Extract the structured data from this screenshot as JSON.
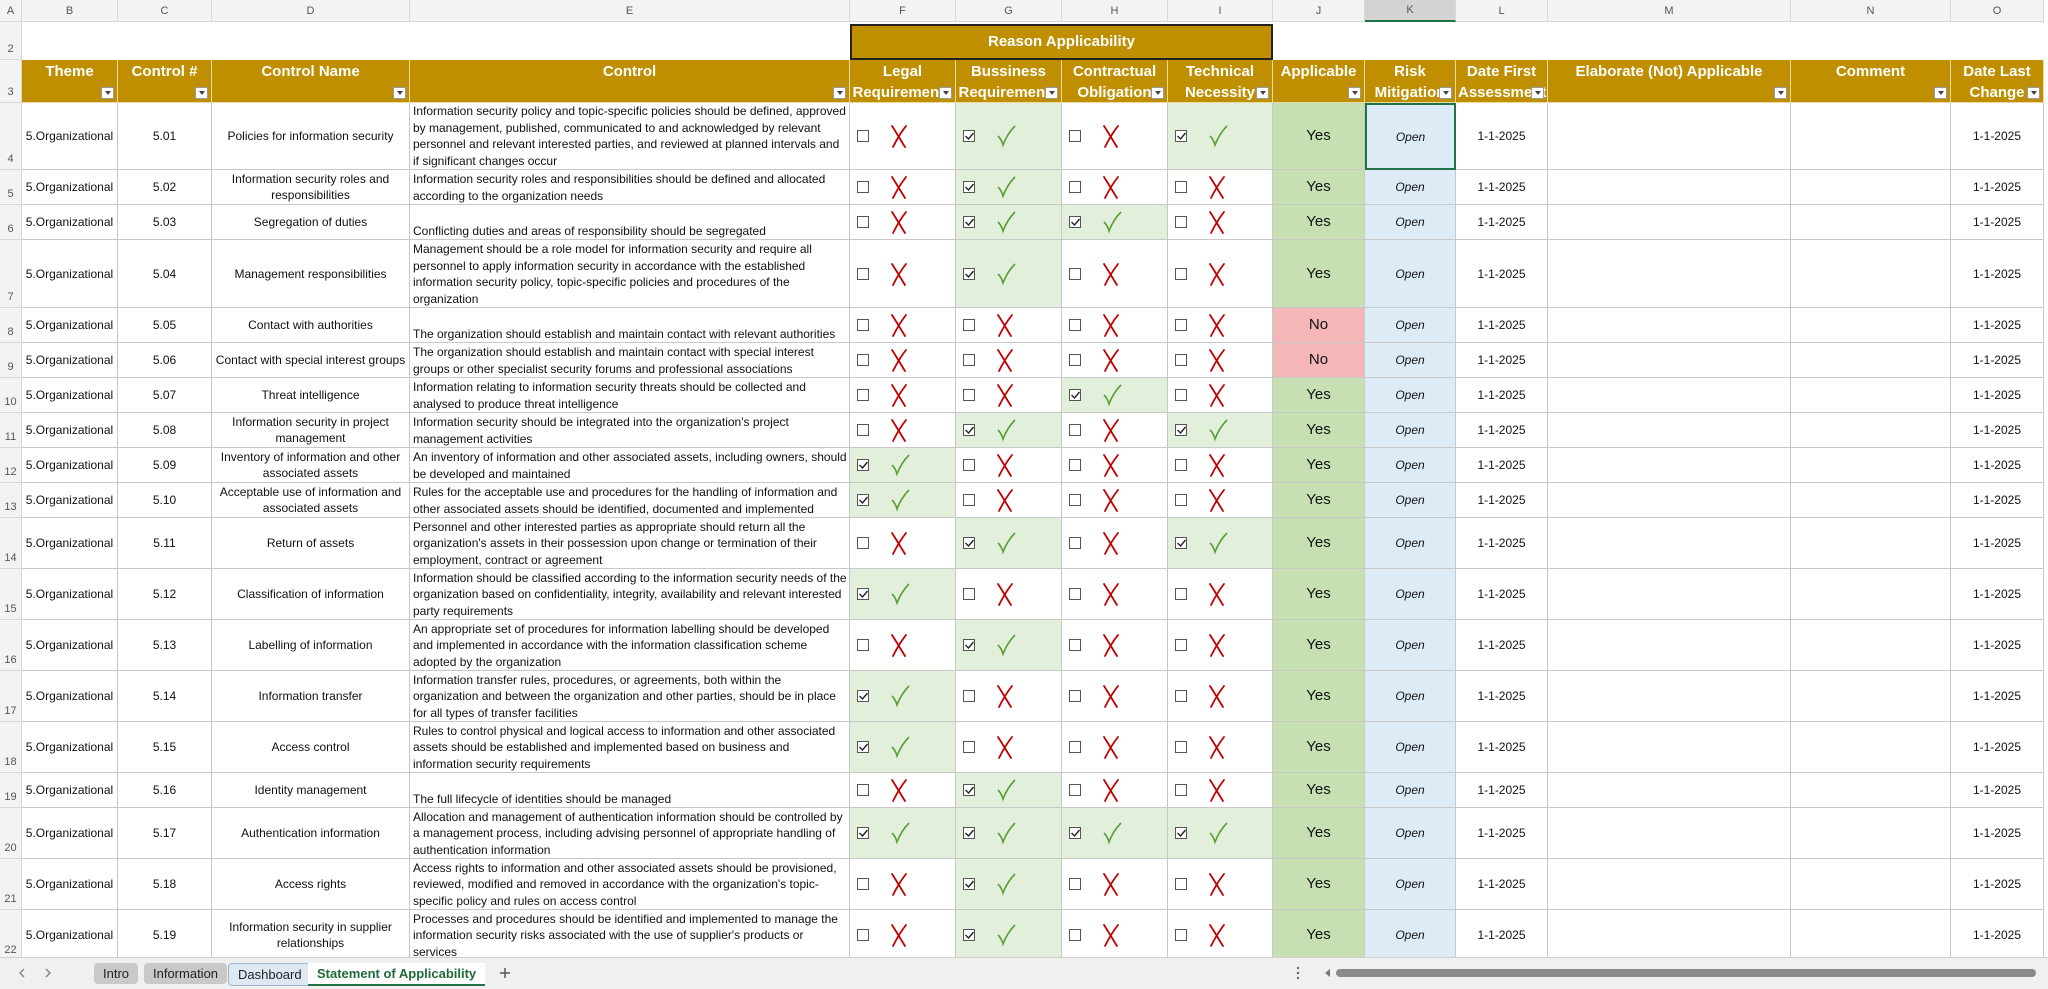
{
  "columns": [
    "A",
    "B",
    "C",
    "D",
    "E",
    "F",
    "G",
    "H",
    "I",
    "J",
    "K",
    "L",
    "M",
    "N",
    "O"
  ],
  "row_numbers": [
    2,
    3,
    4,
    5,
    6,
    7,
    8,
    9,
    10,
    11,
    12,
    13,
    14,
    15,
    16,
    17,
    18,
    19,
    20,
    21,
    22
  ],
  "group_header": "Reason Applicability",
  "headers": [
    "Theme",
    "Control #",
    "Control Name",
    "Control",
    "Legal Requirements",
    "Bussiness Requirements",
    "Contractual Obligation",
    "Technical Necessity",
    "Applicable",
    "Risk Mitigation",
    "Date First Assessment",
    "Elaborate (Not) Applicable",
    "Comment",
    "Date Last Change"
  ],
  "rows": [
    {
      "theme": "5.Organizational",
      "control_no": "5.01",
      "name": "Policies for information security",
      "control": "Information security policy and topic-specific policies should be defined, approved by management, published, communicated to and acknowledged by relevant personnel and relevant interested parties, and reviewed at planned intervals and if significant changes occur",
      "legal": false,
      "business": true,
      "contractual": false,
      "technical": true,
      "applicable": "Yes",
      "risk": "Open",
      "date_first": "1-1-2025",
      "date_last": "1-1-2025"
    },
    {
      "theme": "5.Organizational",
      "control_no": "5.02",
      "name": "Information security roles and responsibilities",
      "control": "Information security roles and responsibilities should be defined and allocated according to the organization needs",
      "legal": false,
      "business": true,
      "contractual": false,
      "technical": false,
      "applicable": "Yes",
      "risk": "Open",
      "date_first": "1-1-2025",
      "date_last": "1-1-2025"
    },
    {
      "theme": "5.Organizational",
      "control_no": "5.03",
      "name": "Segregation of duties",
      "control": "Conflicting duties and areas of responsibility should be segregated",
      "legal": false,
      "business": true,
      "contractual": true,
      "technical": false,
      "applicable": "Yes",
      "risk": "Open",
      "date_first": "1-1-2025",
      "date_last": "1-1-2025"
    },
    {
      "theme": "5.Organizational",
      "control_no": "5.04",
      "name": "Management responsibilities",
      "control": "Management should be a role model for information security and require all personnel to apply information security in accordance with the established information security policy, topic-specific policies and procedures of the organization",
      "legal": false,
      "business": true,
      "contractual": false,
      "technical": false,
      "applicable": "Yes",
      "risk": "Open",
      "date_first": "1-1-2025",
      "date_last": "1-1-2025"
    },
    {
      "theme": "5.Organizational",
      "control_no": "5.05",
      "name": "Contact with authorities",
      "control": "The organization should establish and maintain contact with relevant authorities",
      "legal": false,
      "business": false,
      "contractual": false,
      "technical": false,
      "applicable": "No",
      "risk": "Open",
      "date_first": "1-1-2025",
      "date_last": "1-1-2025"
    },
    {
      "theme": "5.Organizational",
      "control_no": "5.06",
      "name": "Contact with special interest groups",
      "control": "The organization should establish and maintain contact with special interest groups or other specialist security forums and professional associations",
      "legal": false,
      "business": false,
      "contractual": false,
      "technical": false,
      "applicable": "No",
      "risk": "Open",
      "date_first": "1-1-2025",
      "date_last": "1-1-2025"
    },
    {
      "theme": "5.Organizational",
      "control_no": "5.07",
      "name": "Threat intelligence",
      "control": "Information relating to information security threats should be collected and analysed to produce threat intelligence",
      "legal": false,
      "business": false,
      "contractual": true,
      "technical": false,
      "applicable": "Yes",
      "risk": "Open",
      "date_first": "1-1-2025",
      "date_last": "1-1-2025"
    },
    {
      "theme": "5.Organizational",
      "control_no": "5.08",
      "name": "Information security in project management",
      "control": "Information security should be integrated into the organization's project management activities",
      "legal": false,
      "business": true,
      "contractual": false,
      "technical": true,
      "applicable": "Yes",
      "risk": "Open",
      "date_first": "1-1-2025",
      "date_last": "1-1-2025"
    },
    {
      "theme": "5.Organizational",
      "control_no": "5.09",
      "name": "Inventory of information and other associated assets",
      "control": "An inventory of information and other associated assets, including owners, should be developed and maintained",
      "legal": true,
      "business": false,
      "contractual": false,
      "technical": false,
      "applicable": "Yes",
      "risk": "Open",
      "date_first": "1-1-2025",
      "date_last": "1-1-2025"
    },
    {
      "theme": "5.Organizational",
      "control_no": "5.10",
      "name": "Acceptable use of information and associated assets",
      "control": "Rules for the acceptable use and procedures for the handling of information and other associated assets should be identified, documented and implemented",
      "legal": true,
      "business": false,
      "contractual": false,
      "technical": false,
      "applicable": "Yes",
      "risk": "Open",
      "date_first": "1-1-2025",
      "date_last": "1-1-2025"
    },
    {
      "theme": "5.Organizational",
      "control_no": "5.11",
      "name": "Return of assets",
      "control": "Personnel and other interested parties as appropriate should return all the organization's assets in their possession upon change or termination of their employment, contract or agreement",
      "legal": false,
      "business": true,
      "contractual": false,
      "technical": true,
      "applicable": "Yes",
      "risk": "Open",
      "date_first": "1-1-2025",
      "date_last": "1-1-2025"
    },
    {
      "theme": "5.Organizational",
      "control_no": "5.12",
      "name": "Classification of information",
      "control": "Information should be classified according to the information security needs of the organization based on confidentiality, integrity, availability and relevant interested party requirements",
      "legal": true,
      "business": false,
      "contractual": false,
      "technical": false,
      "applicable": "Yes",
      "risk": "Open",
      "date_first": "1-1-2025",
      "date_last": "1-1-2025"
    },
    {
      "theme": "5.Organizational",
      "control_no": "5.13",
      "name": "Labelling of information",
      "control": "An appropriate set of procedures for information labelling should be developed and implemented in accordance with the information classification scheme adopted by the organization",
      "legal": false,
      "business": true,
      "contractual": false,
      "technical": false,
      "applicable": "Yes",
      "risk": "Open",
      "date_first": "1-1-2025",
      "date_last": "1-1-2025"
    },
    {
      "theme": "5.Organizational",
      "control_no": "5.14",
      "name": "Information transfer",
      "control": "Information transfer rules, procedures, or agreements, both within the organization and between the organization and other parties, should be in place for all types of transfer facilities",
      "legal": true,
      "business": false,
      "contractual": false,
      "technical": false,
      "applicable": "Yes",
      "risk": "Open",
      "date_first": "1-1-2025",
      "date_last": "1-1-2025"
    },
    {
      "theme": "5.Organizational",
      "control_no": "5.15",
      "name": "Access control",
      "control": "Rules to control physical and logical access to information and other associated assets should be established and implemented based on business and information security requirements",
      "legal": true,
      "business": false,
      "contractual": false,
      "technical": false,
      "applicable": "Yes",
      "risk": "Open",
      "date_first": "1-1-2025",
      "date_last": "1-1-2025"
    },
    {
      "theme": "5.Organizational",
      "control_no": "5.16",
      "name": "Identity management",
      "control": "The full lifecycle of identities should be managed",
      "legal": false,
      "business": true,
      "contractual": false,
      "technical": false,
      "applicable": "Yes",
      "risk": "Open",
      "date_first": "1-1-2025",
      "date_last": "1-1-2025"
    },
    {
      "theme": "5.Organizational",
      "control_no": "5.17",
      "name": "Authentication information",
      "control": "Allocation and management of authentication information should be controlled by a management process, including advising personnel of appropriate handling of authentication information",
      "legal": true,
      "business": true,
      "contractual": true,
      "technical": true,
      "applicable": "Yes",
      "risk": "Open",
      "date_first": "1-1-2025",
      "date_last": "1-1-2025"
    },
    {
      "theme": "5.Organizational",
      "control_no": "5.18",
      "name": "Access rights",
      "control": "Access rights to information and other associated assets should be provisioned, reviewed, modified and removed in accordance with the organization's topic-specific policy and rules on access control",
      "legal": false,
      "business": true,
      "contractual": false,
      "technical": false,
      "applicable": "Yes",
      "risk": "Open",
      "date_first": "1-1-2025",
      "date_last": "1-1-2025"
    },
    {
      "theme": "5.Organizational",
      "control_no": "5.19",
      "name": "Information security in supplier relationships",
      "control": "Processes and procedures should be identified and implemented to manage the information security risks associated with the use of supplier's products or services",
      "legal": false,
      "business": true,
      "contractual": false,
      "technical": false,
      "applicable": "Yes",
      "risk": "Open",
      "date_first": "1-1-2025",
      "date_last": "1-1-2025"
    }
  ],
  "tabs": [
    "Intro",
    "Information",
    "Dashboard",
    "Statement of Applicability"
  ],
  "active_tab": 3
}
